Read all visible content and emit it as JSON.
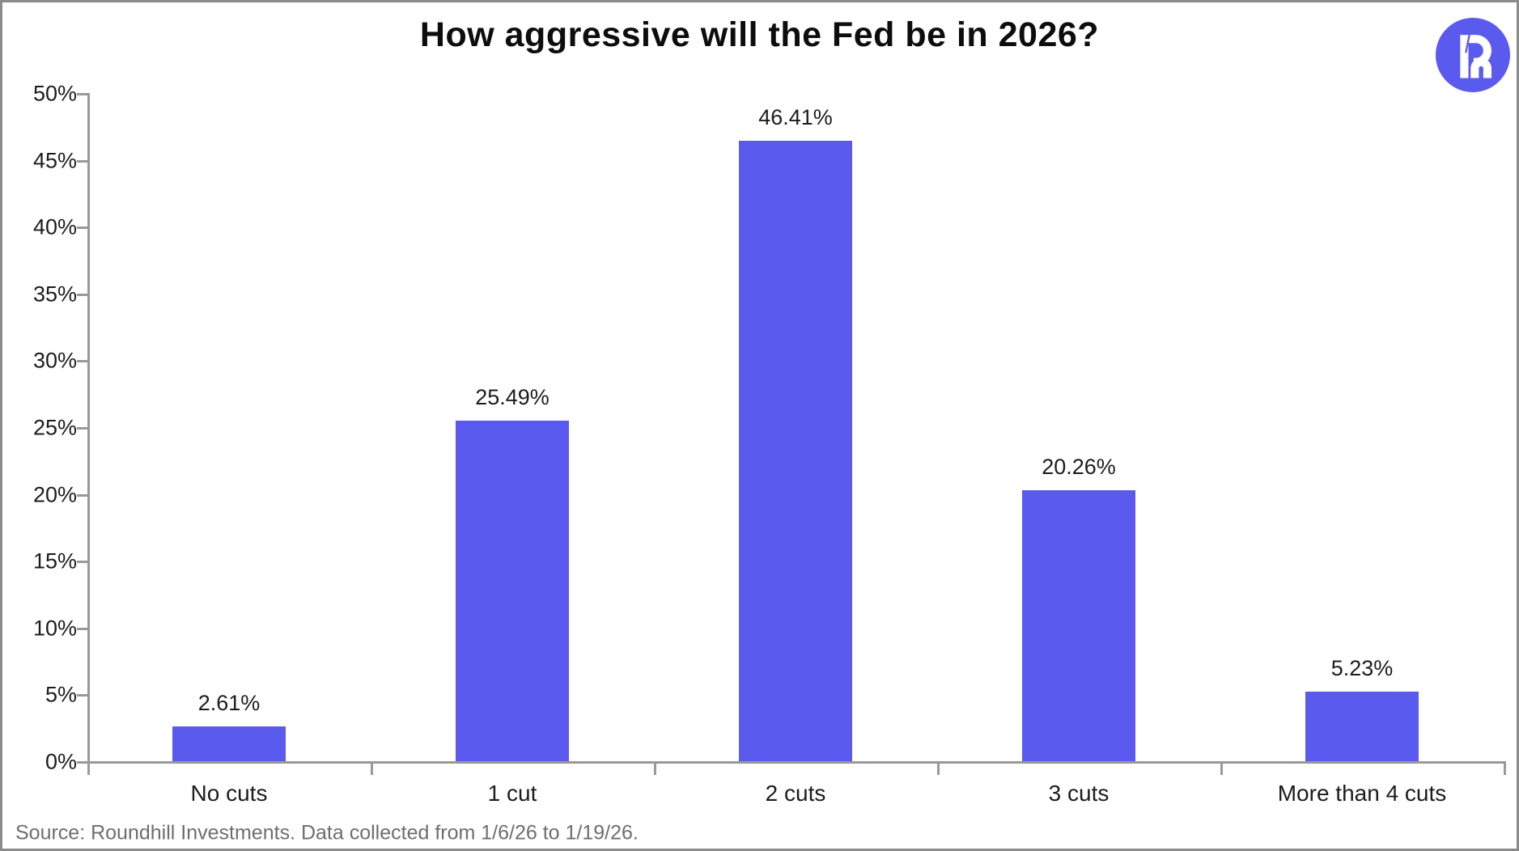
{
  "header": {
    "title": "How aggressive will the Fed be in 2026?"
  },
  "chart_data": {
    "type": "bar",
    "title": "How aggressive will the Fed be in 2026?",
    "categories": [
      "No cuts",
      "1 cut",
      "2 cuts",
      "3 cuts",
      "More than 4 cuts"
    ],
    "values": [
      2.61,
      25.49,
      46.41,
      20.26,
      5.23
    ],
    "value_labels": [
      "2.61%",
      "25.49%",
      "46.41%",
      "20.26%",
      "5.23%"
    ],
    "xlabel": "",
    "ylabel": "",
    "ylim": [
      0,
      50
    ],
    "ytick_step": 5,
    "ytick_labels": [
      "0%",
      "5%",
      "10%",
      "15%",
      "20%",
      "25%",
      "30%",
      "35%",
      "40%",
      "45%",
      "50%"
    ],
    "grid": false,
    "legend": null,
    "bar_color": "#5a5bee",
    "axis_color": "#999999",
    "label_color": "#1c1c1c"
  },
  "footer": {
    "source": "Source: Roundhill Investments. Data collected from 1/6/26 to 1/19/26."
  },
  "logo": {
    "name": "roundhill-logo",
    "circle_color": "#5a5bee",
    "glyph_color": "#ffffff"
  },
  "colors": {
    "accent": "#5a5bee",
    "title_text": "#0d0d0d",
    "axis": "#999999",
    "tick_text": "#1c1c1c",
    "source_text": "#6e6e6e",
    "frame_border": "#8b8b8b",
    "background": "#ffffff"
  }
}
